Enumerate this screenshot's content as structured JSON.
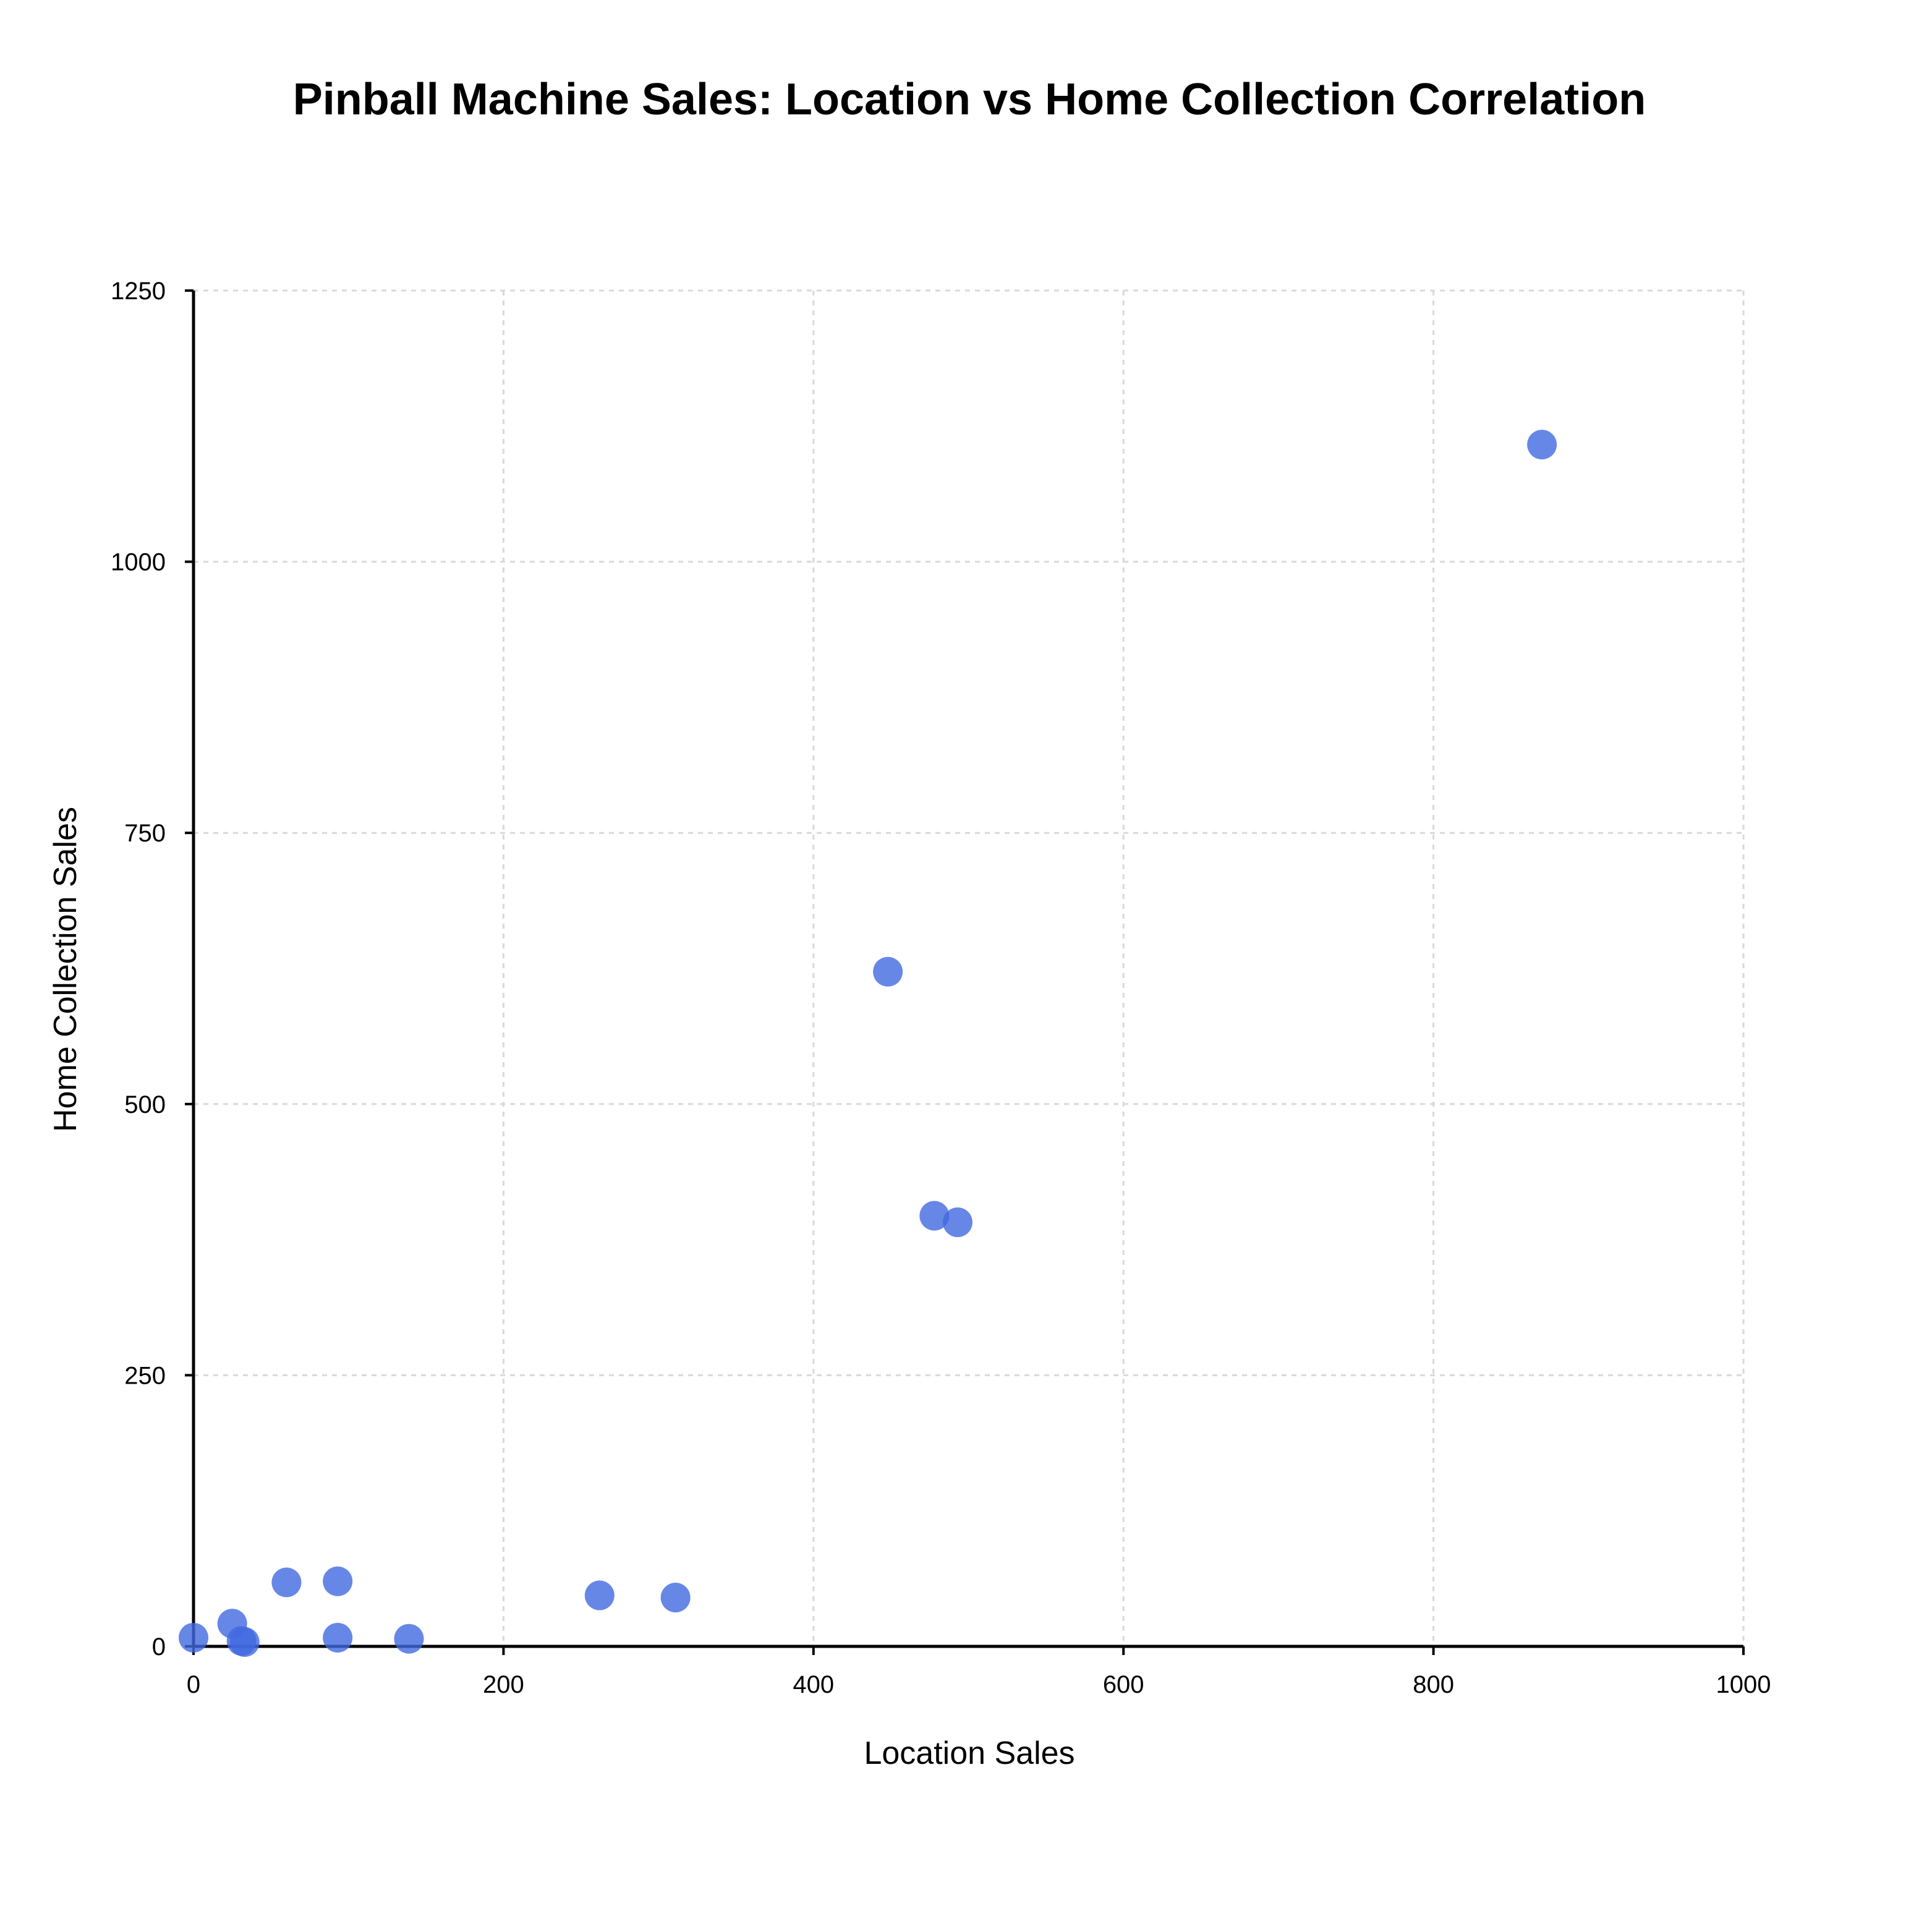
{
  "chart_data": {
    "type": "scatter",
    "title": "Pinball Machine Sales: Location vs Home Collection Correlation",
    "xlabel": "Location Sales",
    "ylabel": "Home Collection Sales",
    "xlim": [
      0,
      1000
    ],
    "ylim": [
      0,
      1250
    ],
    "xticks": [
      0,
      200,
      400,
      600,
      800,
      1000
    ],
    "yticks": [
      0,
      250,
      500,
      750,
      1000,
      1250
    ],
    "grid": true,
    "marker_color": "#4169e1",
    "points": [
      {
        "x": 0,
        "y": 8
      },
      {
        "x": 25,
        "y": 21
      },
      {
        "x": 31,
        "y": 5
      },
      {
        "x": 33,
        "y": 4
      },
      {
        "x": 60,
        "y": 59
      },
      {
        "x": 93,
        "y": 60
      },
      {
        "x": 93,
        "y": 8
      },
      {
        "x": 139,
        "y": 7
      },
      {
        "x": 262,
        "y": 47
      },
      {
        "x": 311,
        "y": 45
      },
      {
        "x": 448,
        "y": 622
      },
      {
        "x": 478,
        "y": 397
      },
      {
        "x": 493,
        "y": 391
      },
      {
        "x": 870,
        "y": 1108
      }
    ]
  }
}
